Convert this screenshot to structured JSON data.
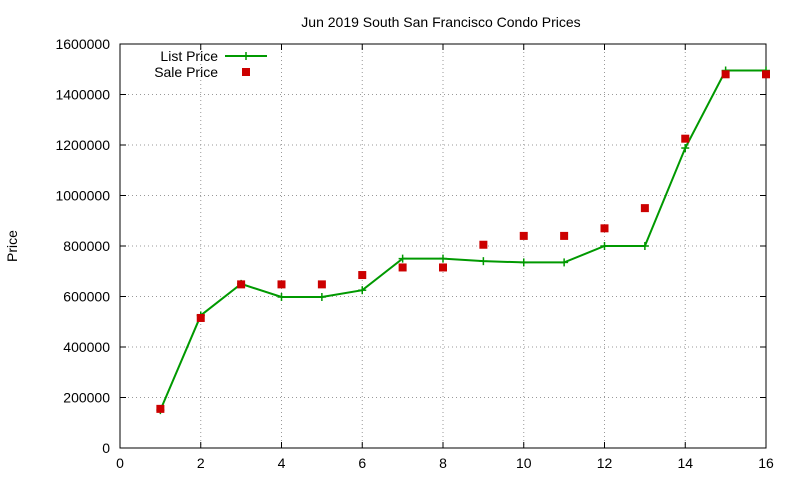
{
  "chart_data": {
    "type": "line",
    "title": "Jun 2019 South San Francisco Condo Prices",
    "xlabel": "",
    "ylabel": "Price",
    "xlim": [
      0,
      16
    ],
    "ylim": [
      0,
      1600000
    ],
    "xticks": [
      0,
      2,
      4,
      6,
      8,
      10,
      12,
      14,
      16
    ],
    "yticks": [
      0,
      200000,
      400000,
      600000,
      800000,
      1000000,
      1200000,
      1400000,
      1600000
    ],
    "grid": true,
    "legend_position": "top-left",
    "series": [
      {
        "name": "List Price",
        "style": "line-with-plus-markers",
        "color": "#009900",
        "x": [
          1,
          2,
          3,
          4,
          5,
          6,
          7,
          8,
          9,
          10,
          11,
          12,
          13,
          14,
          15,
          16
        ],
        "values": [
          150000,
          525000,
          650000,
          598000,
          598000,
          625000,
          750000,
          750000,
          740000,
          735000,
          735000,
          800000,
          800000,
          1188000,
          1495000,
          1495000
        ]
      },
      {
        "name": "Sale Price",
        "style": "square-markers",
        "color": "#cc0000",
        "x": [
          1,
          2,
          3,
          4,
          5,
          6,
          7,
          8,
          9,
          10,
          11,
          12,
          13,
          14,
          15,
          16
        ],
        "values": [
          155000,
          515000,
          648000,
          648000,
          648000,
          685000,
          715000,
          715000,
          805000,
          840000,
          840000,
          870000,
          950000,
          1225000,
          1480000,
          1480000
        ]
      }
    ]
  }
}
